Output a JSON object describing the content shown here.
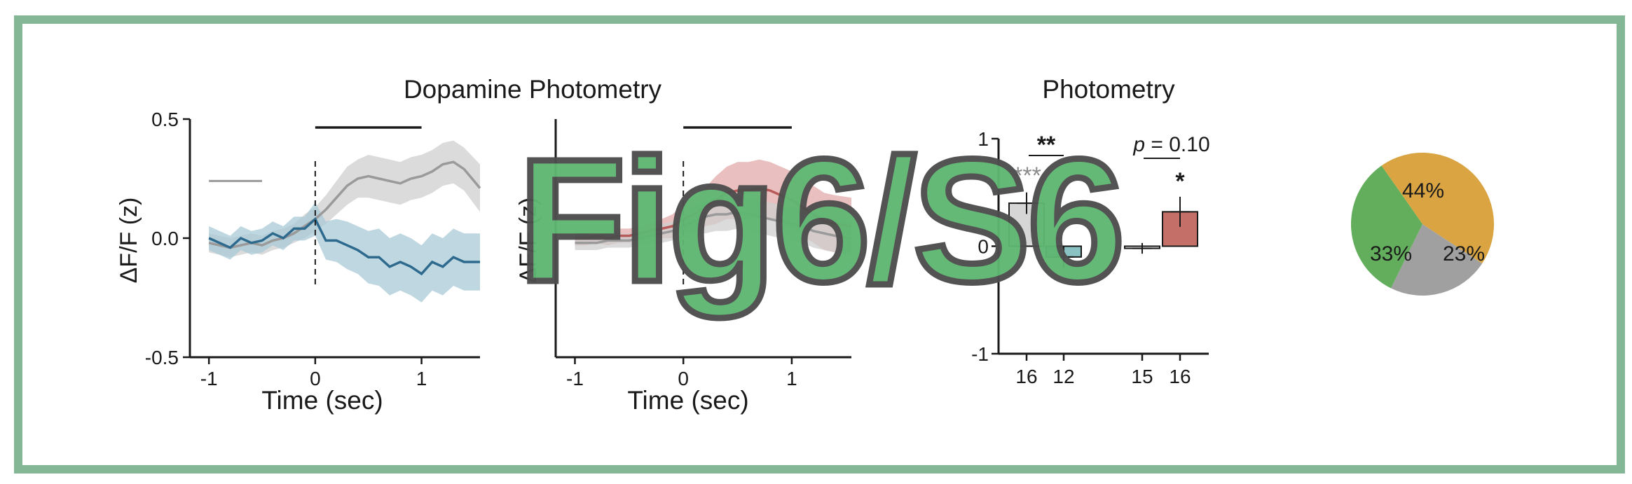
{
  "figure_label": "Fig6/S6",
  "colors": {
    "border": "#84b796",
    "gray_line": "#9a9a9a",
    "gray_band": "#cfcfcf",
    "blue_line": "#2e6a8e",
    "blue_band": "#a9c9d6",
    "red_line": "#b85a5a",
    "red_band": "#e3aaaa",
    "bar_red": "#c47068",
    "bar_teal": "#8ac2c4",
    "pie_gold": "#d9a441",
    "pie_green": "#63ae5c",
    "pie_gray": "#a0a0a0"
  },
  "chart_data": [
    {
      "type": "line",
      "title": "Dopamine Photometry",
      "xlabel": "Time (sec)",
      "ylabel": "ΔF/F (z)",
      "xlim": [
        -1.1,
        1.55
      ],
      "ylim": [
        -0.5,
        0.5
      ],
      "xticks": [
        "-1",
        "0",
        "1"
      ],
      "yticks": [
        "-0.5",
        "0.0",
        "0.5"
      ],
      "event_line_x": 0,
      "bar_annotation": [
        0,
        1
      ],
      "baseline_bar": [
        -1,
        -0.5
      ],
      "series": [
        {
          "color": "gray",
          "x": [
            -1.0,
            -0.9,
            -0.8,
            -0.7,
            -0.6,
            -0.5,
            -0.4,
            -0.3,
            -0.2,
            -0.1,
            0.0,
            0.1,
            0.2,
            0.3,
            0.4,
            0.5,
            0.6,
            0.7,
            0.8,
            0.9,
            1.0,
            1.1,
            1.2,
            1.3,
            1.4,
            1.55
          ],
          "y": [
            -0.02,
            -0.03,
            -0.04,
            -0.03,
            -0.02,
            -0.03,
            -0.01,
            0.0,
            0.02,
            0.05,
            0.08,
            0.12,
            0.17,
            0.22,
            0.25,
            0.26,
            0.25,
            0.24,
            0.23,
            0.25,
            0.26,
            0.28,
            0.31,
            0.32,
            0.29,
            0.21
          ],
          "err": [
            0.04,
            0.04,
            0.04,
            0.04,
            0.04,
            0.04,
            0.04,
            0.04,
            0.04,
            0.05,
            0.05,
            0.06,
            0.07,
            0.08,
            0.08,
            0.09,
            0.09,
            0.09,
            0.09,
            0.09,
            0.09,
            0.09,
            0.09,
            0.09,
            0.09,
            0.1
          ]
        },
        {
          "color": "blue",
          "x": [
            -1.0,
            -0.9,
            -0.8,
            -0.7,
            -0.6,
            -0.5,
            -0.4,
            -0.3,
            -0.2,
            -0.1,
            0.0,
            0.1,
            0.2,
            0.3,
            0.4,
            0.5,
            0.6,
            0.7,
            0.8,
            0.9,
            1.0,
            1.1,
            1.2,
            1.3,
            1.4,
            1.55
          ],
          "y": [
            0.0,
            -0.02,
            -0.04,
            0.0,
            -0.02,
            -0.01,
            0.02,
            0.0,
            0.04,
            0.04,
            0.08,
            -0.01,
            -0.01,
            -0.03,
            -0.05,
            -0.08,
            -0.08,
            -0.12,
            -0.1,
            -0.12,
            -0.15,
            -0.1,
            -0.12,
            -0.08,
            -0.1,
            -0.1
          ],
          "err": [
            0.05,
            0.05,
            0.05,
            0.05,
            0.05,
            0.05,
            0.05,
            0.05,
            0.05,
            0.05,
            0.07,
            0.08,
            0.09,
            0.1,
            0.1,
            0.11,
            0.12,
            0.12,
            0.12,
            0.12,
            0.12,
            0.12,
            0.12,
            0.12,
            0.12,
            0.12
          ]
        }
      ]
    },
    {
      "type": "line",
      "title": "",
      "xlabel": "Time (sec)",
      "ylabel": "ΔF/F (z)",
      "xlim": [
        -1.1,
        1.55
      ],
      "ylim": [
        -0.5,
        0.5
      ],
      "xticks": [
        "-1",
        "0",
        "1"
      ],
      "event_line_x": 0,
      "bar_annotation": [
        0,
        1
      ],
      "series": [
        {
          "color": "red",
          "x": [
            -1.0,
            -0.9,
            -0.8,
            -0.7,
            -0.6,
            -0.5,
            -0.4,
            -0.3,
            -0.2,
            -0.1,
            0.0,
            0.1,
            0.2,
            0.3,
            0.4,
            0.5,
            0.6,
            0.7,
            0.8,
            0.9,
            1.0,
            1.1,
            1.2,
            1.3,
            1.4,
            1.55
          ],
          "y": [
            0.0,
            0.0,
            0.01,
            0.0,
            0.01,
            0.01,
            0.02,
            0.03,
            0.04,
            0.05,
            0.08,
            0.1,
            0.13,
            0.16,
            0.19,
            0.2,
            0.2,
            0.21,
            0.2,
            0.18,
            0.16,
            0.13,
            0.1,
            0.07,
            0.06,
            0.05
          ],
          "err": [
            0.03,
            0.03,
            0.03,
            0.03,
            0.03,
            0.03,
            0.03,
            0.03,
            0.04,
            0.05,
            0.06,
            0.07,
            0.08,
            0.1,
            0.11,
            0.12,
            0.12,
            0.12,
            0.12,
            0.12,
            0.12,
            0.12,
            0.12,
            0.12,
            0.12,
            0.12
          ]
        },
        {
          "color": "gray",
          "x": [
            -1.0,
            -0.9,
            -0.8,
            -0.7,
            -0.6,
            -0.5,
            -0.4,
            -0.3,
            -0.2,
            -0.1,
            0.0,
            0.1,
            0.2,
            0.3,
            0.4,
            0.5,
            0.6,
            0.7,
            0.8,
            0.9,
            1.0,
            1.1,
            1.2,
            1.3,
            1.4,
            1.55
          ],
          "y": [
            -0.02,
            -0.02,
            -0.02,
            -0.01,
            -0.01,
            -0.01,
            0.0,
            0.01,
            0.02,
            0.03,
            0.05,
            0.07,
            0.09,
            0.1,
            0.1,
            0.11,
            0.1,
            0.09,
            0.08,
            0.07,
            0.06,
            0.05,
            0.03,
            0.02,
            0.01,
            0.0
          ],
          "err": [
            0.03,
            0.03,
            0.03,
            0.03,
            0.03,
            0.03,
            0.03,
            0.03,
            0.04,
            0.04,
            0.05,
            0.06,
            0.07,
            0.07,
            0.07,
            0.07,
            0.07,
            0.07,
            0.07,
            0.07,
            0.07,
            0.07,
            0.07,
            0.07,
            0.07,
            0.07
          ]
        }
      ]
    },
    {
      "type": "bar",
      "title": "Photometry",
      "ylim": [
        -1,
        1
      ],
      "yticks": [
        "-1",
        "0",
        "1"
      ],
      "categories": [
        "16",
        "12",
        "15",
        "16"
      ],
      "values": [
        0.4,
        -0.1,
        -0.02,
        0.32
      ],
      "errors": [
        0.1,
        0.1,
        0.05,
        0.14
      ],
      "bar_colors": [
        "gray",
        "teal",
        "white",
        "red"
      ],
      "annotations": [
        {
          "text": "**",
          "between": [
            0,
            1
          ]
        },
        {
          "text": "***",
          "over": 0
        },
        {
          "text_prefix": "p",
          "text": " = 0.10",
          "between": [
            2,
            3
          ]
        },
        {
          "text": "*",
          "over": 3
        }
      ]
    },
    {
      "type": "pie",
      "labels": [
        "44%",
        "23%",
        "33%"
      ],
      "values": [
        44,
        23,
        33
      ],
      "colors": [
        "gold",
        "gray",
        "green"
      ]
    }
  ]
}
